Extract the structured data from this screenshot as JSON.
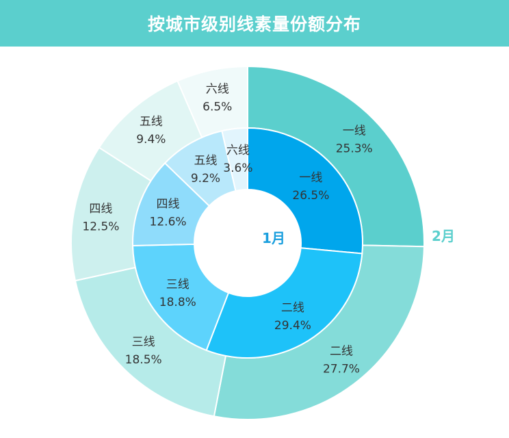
{
  "header": {
    "title": "按城市级别线素量份额分布"
  },
  "colors": {
    "header_bg": "#5bcfcd",
    "inner": [
      "#00a6ec",
      "#1ec2f9",
      "#5dd3fc",
      "#8fdcfb",
      "#b8e8fb",
      "#e2f5fd"
    ],
    "outer": [
      "#5bcfcd",
      "#84dcd9",
      "#b6ebe9",
      "#cdf0ee",
      "#e1f6f4",
      "#f0fafa"
    ],
    "inner_label": "#1a9fde",
    "outer_label": "#5bcfcd"
  },
  "chart_data": {
    "type": "pie",
    "title": "按城市级别线素量份额分布",
    "categories": [
      "一线",
      "二线",
      "三线",
      "四线",
      "五线",
      "六线"
    ],
    "series": [
      {
        "name": "1月",
        "ring": "inner",
        "values": [
          26.5,
          29.4,
          18.8,
          12.6,
          9.2,
          3.6
        ]
      },
      {
        "name": "2月",
        "ring": "outer",
        "values": [
          25.3,
          27.7,
          18.5,
          12.5,
          9.4,
          6.5
        ]
      }
    ],
    "unit": "%"
  }
}
